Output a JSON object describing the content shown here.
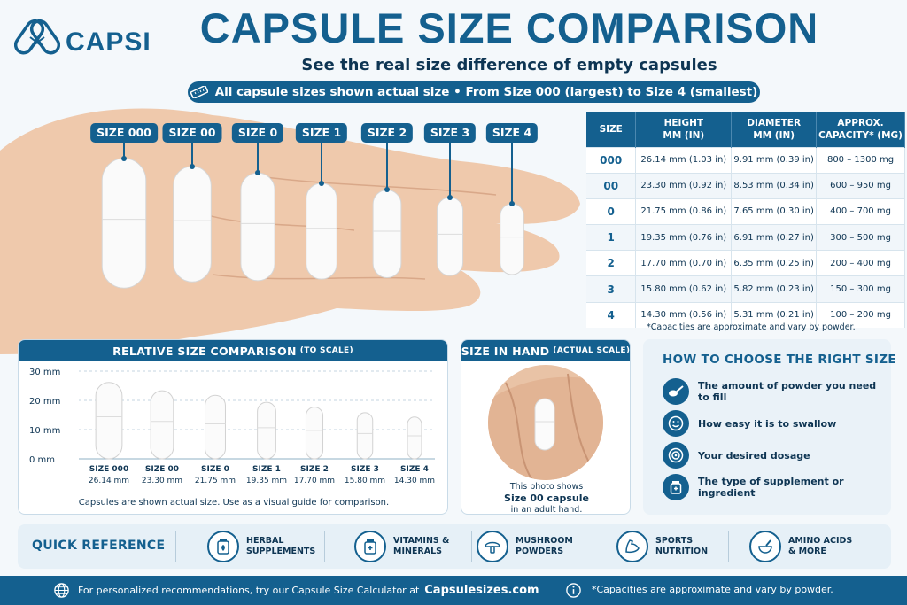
{
  "brand": {
    "name": "CAPSI",
    "logo_icon": "dna-capsule-icon"
  },
  "header": {
    "title": "CAPSULE SIZE COMPARISON",
    "subtitle": "See the real size difference of empty capsules",
    "banner": "All capsule sizes shown actual size  •  From Size 000 (largest) to Size 4 (smallest)",
    "banner_icon": "ruler-icon"
  },
  "hand_labels": [
    "SIZE 000",
    "SIZE 00",
    "SIZE 0",
    "SIZE 1",
    "SIZE 2",
    "SIZE 3",
    "SIZE 4"
  ],
  "table": {
    "headers": [
      "SIZE",
      "HEIGHT\nMM (IN)",
      "DIAMETER\nMM (IN)",
      "APPROX.\nCAPACITY* (MG)"
    ],
    "rows": [
      [
        "000",
        "26.14 mm (1.03 in)",
        "9.91 mm (0.39 in)",
        "800 – 1300 mg"
      ],
      [
        "00",
        "23.30 mm (0.92 in)",
        "8.53 mm (0.34 in)",
        "600 – 950 mg"
      ],
      [
        "0",
        "21.75 mm (0.86 in)",
        "7.65 mm (0.30 in)",
        "400 – 700 mg"
      ],
      [
        "1",
        "19.35 mm (0.76 in)",
        "6.91 mm (0.27 in)",
        "300 – 500 mg"
      ],
      [
        "2",
        "17.70 mm (0.70 in)",
        "6.35 mm (0.25 in)",
        "200 – 400 mg"
      ],
      [
        "3",
        "15.80 mm (0.62 in)",
        "5.82 mm (0.23 in)",
        "150 – 300 mg"
      ],
      [
        "4",
        "14.30 mm (0.56 in)",
        "5.31 mm (0.21 in)",
        "100 – 200 mg"
      ]
    ],
    "note": "*Capacities are approximate and vary by powder."
  },
  "relative": {
    "title": "RELATIVE SIZE COMPARISON",
    "title_small": "(TO SCALE)",
    "y_ticks": [
      "30 mm",
      "20 mm",
      "10 mm",
      "0 mm"
    ],
    "capsules": [
      {
        "label": "SIZE 000",
        "value": "26.14 mm",
        "height_mm": 26.14,
        "diameter_mm": 9.91
      },
      {
        "label": "SIZE 00",
        "value": "23.30 mm",
        "height_mm": 23.3,
        "diameter_mm": 8.53
      },
      {
        "label": "SIZE 0",
        "value": "21.75 mm",
        "height_mm": 21.75,
        "diameter_mm": 7.65
      },
      {
        "label": "SIZE 1",
        "value": "19.35 mm",
        "height_mm": 19.35,
        "diameter_mm": 6.91
      },
      {
        "label": "SIZE 2",
        "value": "17.70 mm",
        "height_mm": 17.7,
        "diameter_mm": 6.35
      },
      {
        "label": "SIZE 3",
        "value": "15.80 mm",
        "height_mm": 15.8,
        "diameter_mm": 5.82
      },
      {
        "label": "SIZE 4",
        "value": "14.30 mm",
        "height_mm": 14.3,
        "diameter_mm": 5.31
      }
    ],
    "note": "Capsules are shown actual size. Use as a visual guide for comparison."
  },
  "in_hand": {
    "title": "SIZE IN HAND",
    "title_small": "(ACTUAL SCALE)",
    "caption_1": "This photo shows",
    "caption_2": "Size 00 capsule",
    "caption_3": "in an adult hand."
  },
  "choose": {
    "title": "HOW TO CHOOSE THE RIGHT SIZE",
    "items": [
      {
        "icon": "scoop-icon",
        "text": "The amount of powder you need to fill"
      },
      {
        "icon": "smile-icon",
        "text": "How easy it is to swallow"
      },
      {
        "icon": "target-icon",
        "text": "Your desired dosage"
      },
      {
        "icon": "supplement-bottle-icon",
        "text": "The type of supplement or ingredient"
      }
    ]
  },
  "quick": {
    "title": "QUICK REFERENCE",
    "items": [
      {
        "icon": "herb-jar-icon",
        "label": "HERBAL\nSUPPLEMENTS"
      },
      {
        "icon": "vitamin-bottle-icon",
        "label": "VITAMINS &\nMINERALS"
      },
      {
        "icon": "mushroom-icon",
        "label": "MUSHROOM\nPOWDERS"
      },
      {
        "icon": "muscle-arm-icon",
        "label": "SPORTS\nNUTRITION"
      },
      {
        "icon": "mortar-icon",
        "label": "AMINO ACIDS\n& MORE"
      }
    ]
  },
  "footer": {
    "text": "For personalized recommendations, try our Capsule Size Calculator at",
    "link": "Capsulesizes.com",
    "note": "*Capacities are approximate and vary by powder.",
    "globe_icon": "globe-icon",
    "info_icon": "info-icon"
  },
  "colors": {
    "primary": "#14608f",
    "dark": "#0e3553",
    "skin": "#efc9ac"
  }
}
